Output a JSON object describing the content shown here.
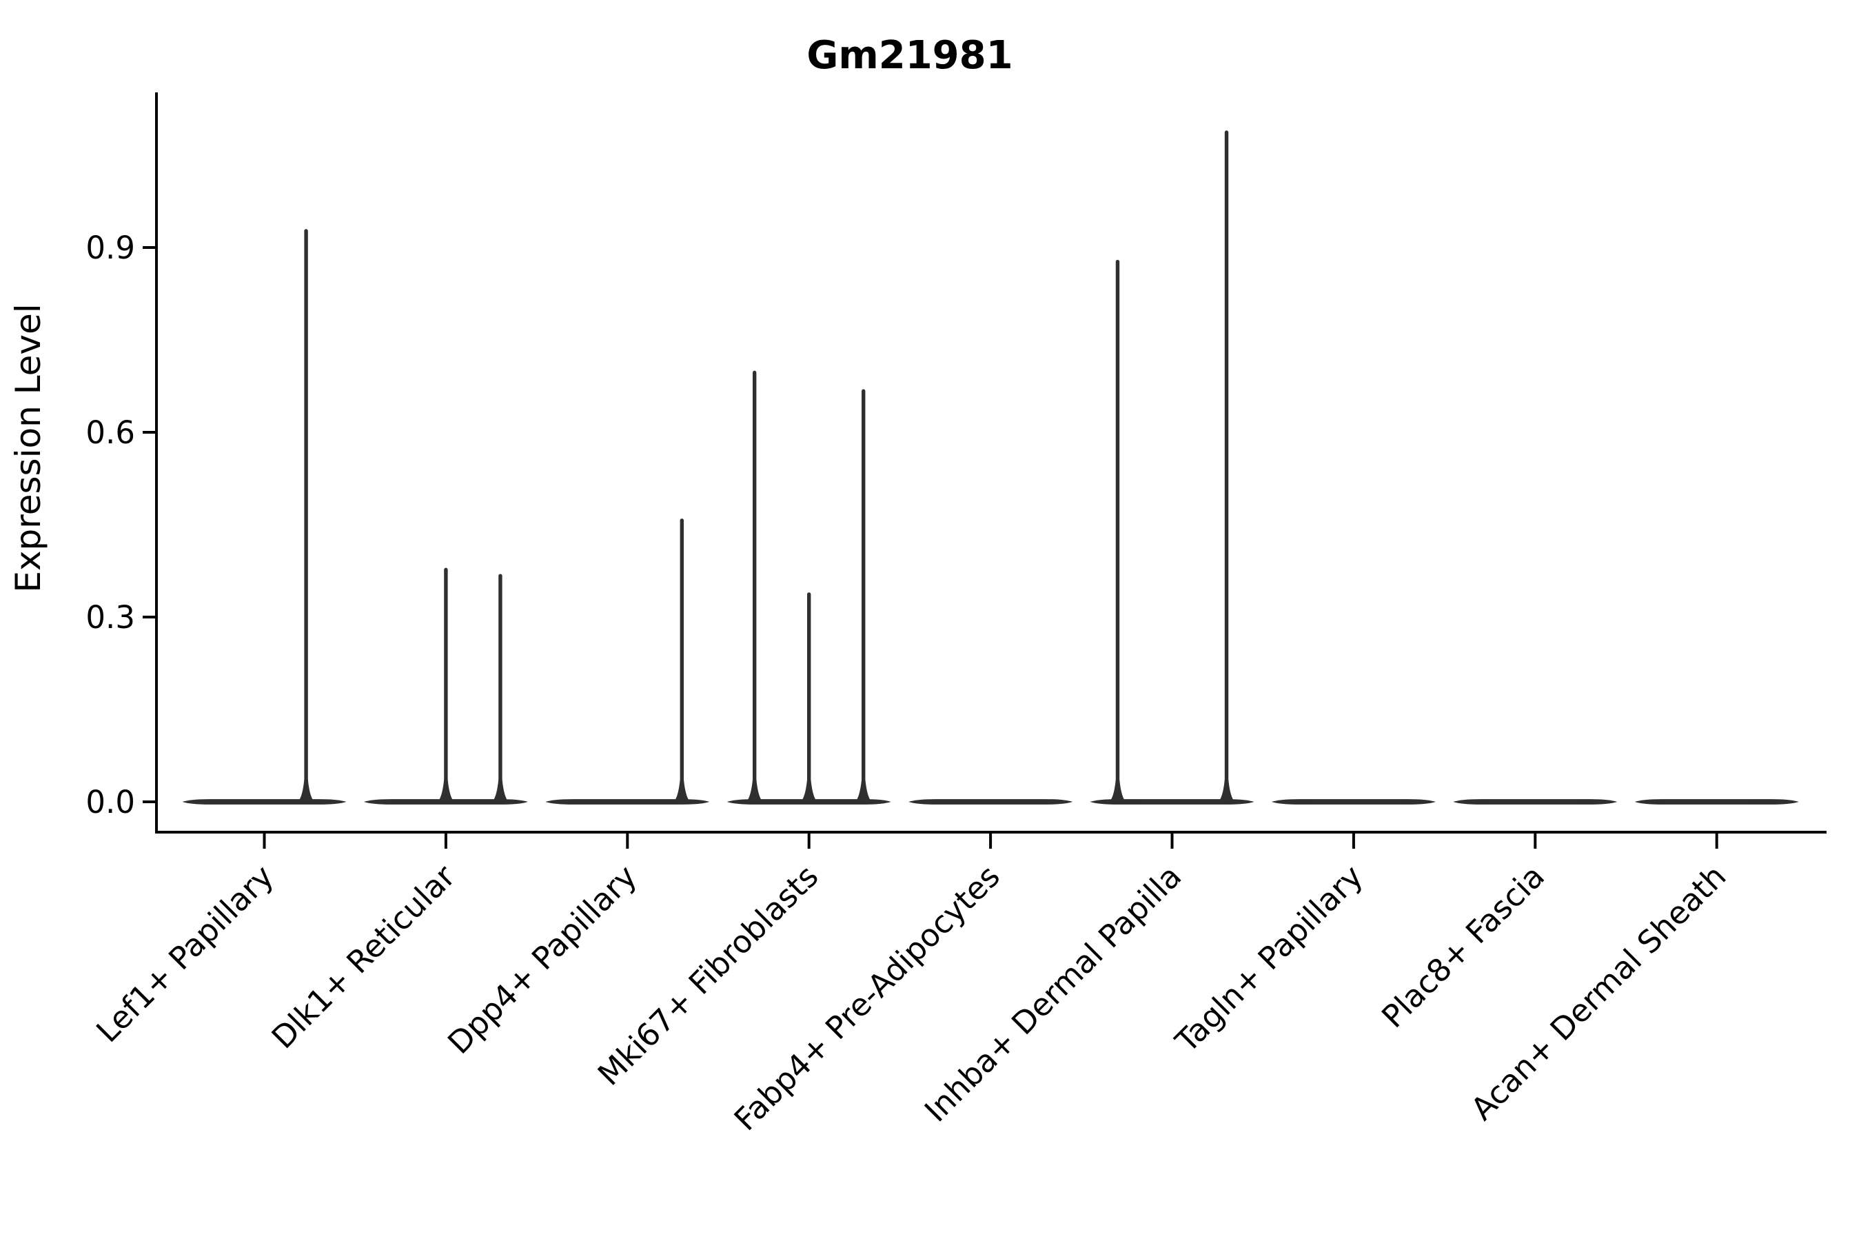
{
  "chart_data": {
    "type": "violin",
    "title": "Gm21981",
    "xlabel": "",
    "ylabel": "Expression Level",
    "ytick_labels": [
      "0.0",
      "0.3",
      "0.6",
      "0.9"
    ],
    "yticks": [
      0.0,
      0.3,
      0.6,
      0.9
    ],
    "ylim": [
      -0.05,
      1.15
    ],
    "grid": false,
    "legend": null,
    "categories": [
      "Lef1+ Papillary",
      "Dlk1+ Reticular",
      "Dpp4+ Papillary",
      "Mki67+ Fibroblasts",
      "Fabp4+ Pre-Adipocytes",
      "Inhba+ Dermal Papilla",
      "Tagln+ Papillary",
      "Plac8+ Fascia",
      "Acan+ Dermal Sheath"
    ],
    "violins": [
      {
        "category": "Lef1+ Papillary",
        "body_at_zero": true,
        "max_value": 0.93,
        "spikes": [
          {
            "offset": 0.23,
            "value": 0.93
          }
        ]
      },
      {
        "category": "Dlk1+ Reticular",
        "body_at_zero": true,
        "max_value": 0.38,
        "spikes": [
          {
            "offset": 0.0,
            "value": 0.38
          },
          {
            "offset": 0.3,
            "value": 0.37
          }
        ]
      },
      {
        "category": "Dpp4+ Papillary",
        "body_at_zero": true,
        "max_value": 0.46,
        "spikes": [
          {
            "offset": 0.3,
            "value": 0.46
          }
        ]
      },
      {
        "category": "Mki67+ Fibroblasts",
        "body_at_zero": true,
        "max_value": 0.7,
        "spikes": [
          {
            "offset": -0.3,
            "value": 0.7
          },
          {
            "offset": 0.0,
            "value": 0.34
          },
          {
            "offset": 0.3,
            "value": 0.67
          }
        ]
      },
      {
        "category": "Fabp4+ Pre-Adipocytes",
        "body_at_zero": true,
        "max_value": 0.0,
        "spikes": []
      },
      {
        "category": "Inhba+ Dermal Papilla",
        "body_at_zero": true,
        "max_value": 1.09,
        "spikes": [
          {
            "offset": -0.3,
            "value": 0.88
          },
          {
            "offset": 0.3,
            "value": 1.09
          }
        ]
      },
      {
        "category": "Tagln+ Papillary",
        "body_at_zero": true,
        "max_value": 0.0,
        "spikes": []
      },
      {
        "category": "Plac8+ Fascia",
        "body_at_zero": true,
        "max_value": 0.0,
        "spikes": []
      },
      {
        "category": "Acan+ Dermal Sheath",
        "body_at_zero": true,
        "max_value": 0.0,
        "spikes": []
      }
    ],
    "colors": {
      "violin": "#2f2f2f",
      "axis": "#000000",
      "text": "#000000",
      "background": "#ffffff"
    }
  }
}
